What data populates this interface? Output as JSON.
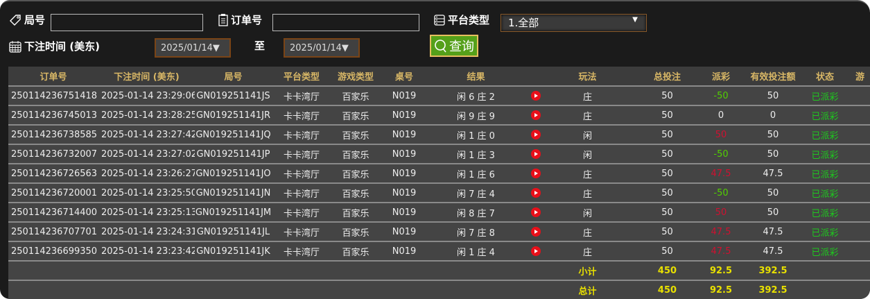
{
  "filters": {
    "round_label": "局号",
    "round_value": "",
    "order_label": "订单号",
    "order_value": "",
    "platform_label": "平台类型",
    "platform_value": "1.全部",
    "time_label": "下注时间 (美东)",
    "date_from": "2025/01/14▼",
    "to_label": "至",
    "date_to": "2025/01/14▼",
    "query_label": "查询"
  },
  "table": {
    "headers": [
      "订单号",
      "下注时间 (美东)",
      "局号",
      "平台类型",
      "游戏类型",
      "桌号",
      "结果",
      "",
      "玩法",
      "总投注",
      "派彩",
      "有效投注额",
      "状态",
      "游"
    ],
    "rows": [
      [
        "250114236751418",
        "2025-01-14 23:29:06",
        "GN019251141JS",
        "卡卡湾厅",
        "百家乐",
        "N019",
        "闲 6 庄 2",
        "庄",
        "50",
        "-50",
        "50",
        "已派彩",
        "g"
      ],
      [
        "250114236745013",
        "2025-01-14 23:28:25",
        "GN019251141JR",
        "卡卡湾厅",
        "百家乐",
        "N019",
        "闲 9 庄 9",
        "庄",
        "50",
        "0",
        "0",
        "已派彩",
        ""
      ],
      [
        "250114236738585",
        "2025-01-14 23:27:42",
        "GN019251141JQ",
        "卡卡湾厅",
        "百家乐",
        "N019",
        "闲 1 庄 0",
        "闲",
        "50",
        "50",
        "50",
        "已派彩",
        "r"
      ],
      [
        "250114236732007",
        "2025-01-14 23:27:02",
        "GN019251141JP",
        "卡卡湾厅",
        "百家乐",
        "N019",
        "闲 1 庄 3",
        "闲",
        "50",
        "-50",
        "50",
        "已派彩",
        "g"
      ],
      [
        "250114236726563",
        "2025-01-14 23:26:27",
        "GN019251141JO",
        "卡卡湾厅",
        "百家乐",
        "N019",
        "闲 1 庄 6",
        "庄",
        "50",
        "47.5",
        "47.5",
        "已派彩",
        "r"
      ],
      [
        "250114236720001",
        "2025-01-14 23:25:50",
        "GN019251141JN",
        "卡卡湾厅",
        "百家乐",
        "N019",
        "闲 7 庄 4",
        "庄",
        "50",
        "-50",
        "50",
        "已派彩",
        "g"
      ],
      [
        "250114236714400",
        "2025-01-14 23:25:13",
        "GN019251141JM",
        "卡卡湾厅",
        "百家乐",
        "N019",
        "闲 8 庄 7",
        "闲",
        "50",
        "50",
        "50",
        "已派彩",
        "r"
      ],
      [
        "250114236707701",
        "2025-01-14 23:24:31",
        "GN019251141JL",
        "卡卡湾厅",
        "百家乐",
        "N019",
        "闲 7 庄 8",
        "庄",
        "50",
        "47.5",
        "47.5",
        "已派彩",
        "r"
      ],
      [
        "250114236699350",
        "2025-01-14 23:23:42",
        "GN019251141JK",
        "卡卡湾厅",
        "百家乐",
        "N019",
        "闲 1 庄 4",
        "庄",
        "50",
        "47.5",
        "47.5",
        "已派彩",
        "r"
      ]
    ],
    "subtotal": {
      "label": "小计",
      "total_bet": "450",
      "payout": "92.5",
      "valid_bet": "392.5"
    },
    "total": {
      "label": "总计",
      "total_bet": "450",
      "payout": "92.5",
      "valid_bet": "392.5"
    }
  },
  "colors": {
    "positive_payout": "#d01030",
    "negative_payout": "#52d000",
    "status": "#1ec81e",
    "totals": "#e8e000",
    "header_text": "#d8b766",
    "query_button": "#55a01a"
  }
}
